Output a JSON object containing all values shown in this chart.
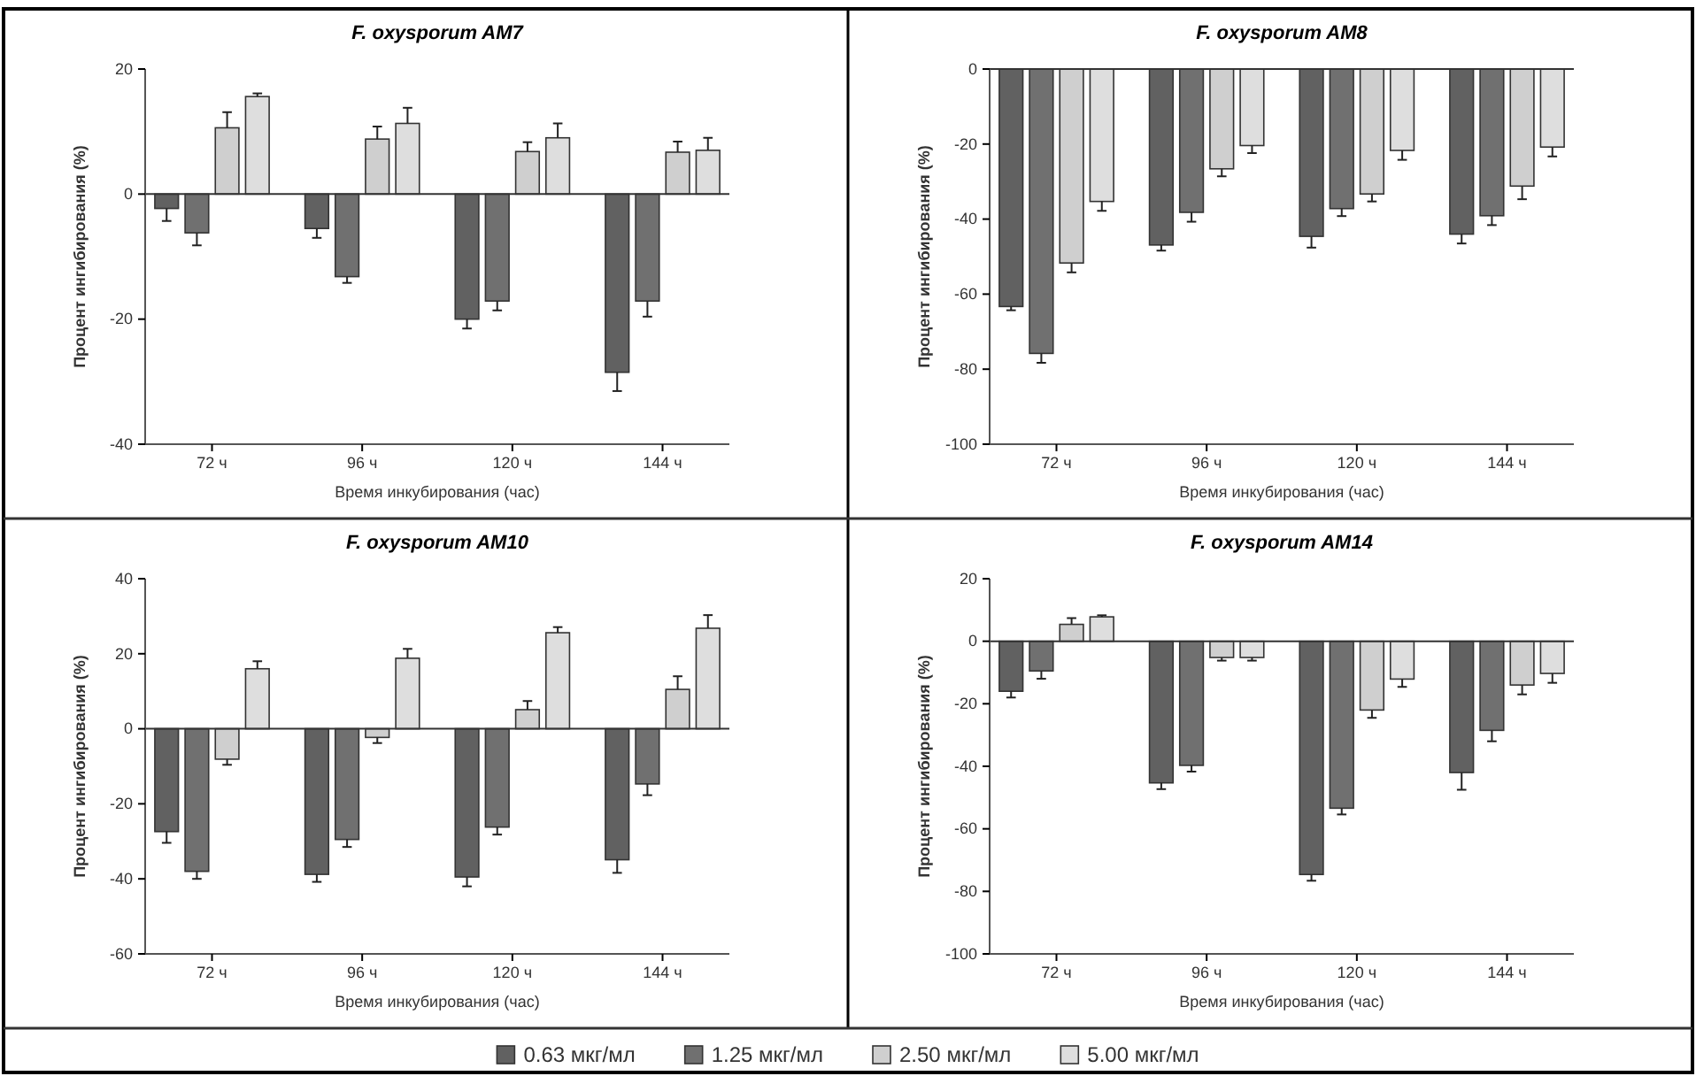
{
  "chart_data": [
    {
      "type": "bar",
      "title": "F. oxysporum AM7",
      "xlabel": "Время инкубирования (час)",
      "ylabel": "Процент ингибирования (%)",
      "categories": [
        "72 ч",
        "96 ч",
        "120 ч",
        "144 ч"
      ],
      "ylim": [
        -40,
        20
      ],
      "yticks": [
        20,
        0,
        -20,
        -40
      ],
      "legend": false,
      "series": [
        {
          "color": "#616161",
          "values": [
            -2.3,
            -5.5,
            -20,
            -28.5
          ],
          "errors": [
            2,
            1.5,
            1.5,
            3
          ]
        },
        {
          "color": "#707070",
          "values": [
            -6.2,
            -13.2,
            -17.1,
            -17.1
          ],
          "errors": [
            2,
            1,
            1.5,
            2.5
          ]
        },
        {
          "color": "#cfcfcf",
          "values": [
            10.6,
            8.8,
            6.8,
            6.7
          ],
          "errors": [
            2.5,
            2,
            1.5,
            1.7
          ]
        },
        {
          "color": "#dedede",
          "values": [
            15.6,
            11.3,
            9,
            7
          ],
          "errors": [
            0.5,
            2.5,
            2.3,
            2
          ]
        }
      ]
    },
    {
      "type": "bar",
      "title": "F. oxysporum AM8",
      "xlabel": "Время инкубирования (час)",
      "ylabel": "Процент ингибирования (%)",
      "categories": [
        "72 ч",
        "96 ч",
        "120 ч",
        "144 ч"
      ],
      "ylim": [
        -100,
        0
      ],
      "yticks": [
        0,
        -20,
        -40,
        -60,
        -80,
        -100
      ],
      "legend": false,
      "series": [
        {
          "color": "#616161",
          "values": [
            -63.3,
            -46.9,
            -44.6,
            -44
          ],
          "errors": [
            1,
            1.5,
            3,
            2.5
          ]
        },
        {
          "color": "#707070",
          "values": [
            -75.8,
            -38.2,
            -37.2,
            -39.1
          ],
          "errors": [
            2.5,
            2.5,
            2,
            2.5
          ]
        },
        {
          "color": "#cfcfcf",
          "values": [
            -51.7,
            -26.6,
            -33.3,
            -31.2
          ],
          "errors": [
            2.5,
            2,
            2,
            3.5
          ]
        },
        {
          "color": "#dedede",
          "values": [
            -35.3,
            -20.4,
            -21.7,
            -20.8
          ],
          "errors": [
            2.5,
            2,
            2.5,
            2.5
          ]
        }
      ]
    },
    {
      "type": "bar",
      "title": "F. oxysporum AM10",
      "xlabel": "Время инкубирования (час)",
      "ylabel": "Процент ингибирования (%)",
      "categories": [
        "72 ч",
        "96 ч",
        "120 ч",
        "144 ч"
      ],
      "ylim": [
        -60,
        40
      ],
      "yticks": [
        40,
        20,
        0,
        -20,
        -40,
        -60
      ],
      "legend": false,
      "series": [
        {
          "color": "#616161",
          "values": [
            -27.4,
            -38.8,
            -39.5,
            -34.9
          ],
          "errors": [
            3,
            2,
            2.5,
            3.5
          ]
        },
        {
          "color": "#707070",
          "values": [
            -38,
            -29.5,
            -26.2,
            -14.7
          ],
          "errors": [
            2,
            2,
            2,
            3
          ]
        },
        {
          "color": "#cfcfcf",
          "values": [
            -8.1,
            -2.3,
            5.1,
            10.5
          ],
          "errors": [
            1.5,
            1.5,
            2.3,
            3.5
          ]
        },
        {
          "color": "#dedede",
          "values": [
            16,
            18.8,
            25.6,
            26.8
          ],
          "errors": [
            2,
            2.5,
            1.5,
            3.5
          ]
        }
      ]
    },
    {
      "type": "bar",
      "title": "F. oxysporum AM14",
      "xlabel": "Время инкубирования (час)",
      "ylabel": "Процент ингибирования (%)",
      "categories": [
        "72 ч",
        "96 ч",
        "120 ч",
        "144 ч"
      ],
      "ylim": [
        -100,
        20
      ],
      "yticks": [
        20,
        0,
        -20,
        -40,
        -60,
        -80,
        -100
      ],
      "legend": "bottom",
      "series": [
        {
          "name": "0.63 мкг/мл",
          "color": "#616161",
          "values": [
            -16,
            -45.3,
            -74.6,
            -42
          ],
          "errors": [
            2,
            2,
            2,
            5.5
          ]
        },
        {
          "name": "1.25 мкг/мл",
          "color": "#707070",
          "values": [
            -9.5,
            -39.7,
            -53.4,
            -28.5
          ],
          "errors": [
            2.5,
            2,
            2,
            3.5
          ]
        },
        {
          "name": "2.50 мкг/мл",
          "color": "#cfcfcf",
          "values": [
            5.4,
            -5.2,
            -22,
            -14
          ],
          "errors": [
            2,
            1,
            2.5,
            3
          ]
        },
        {
          "name": "5.00 мкг/мл",
          "color": "#dedede",
          "values": [
            7.8,
            -5.2,
            -12.1,
            -10.3
          ],
          "errors": [
            0.5,
            1,
            2.5,
            3
          ]
        }
      ]
    }
  ]
}
